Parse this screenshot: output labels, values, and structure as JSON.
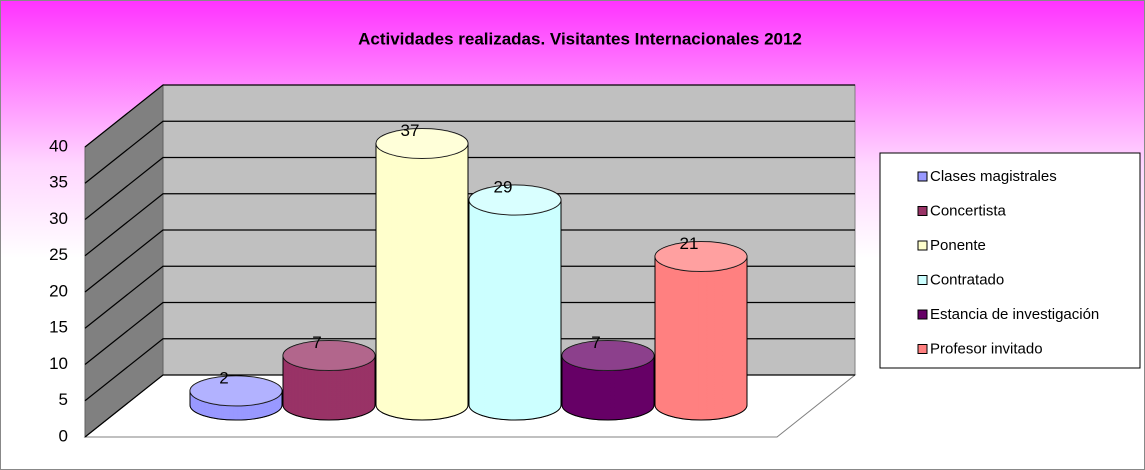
{
  "chart_data": {
    "type": "bar",
    "title": "Actividades realizadas. Visitantes Internacionales 2012",
    "series": [
      {
        "name": "Clases magistrales",
        "color": "#9999ff",
        "values": [
          2
        ]
      },
      {
        "name": "Concertista",
        "color": "#993366",
        "values": [
          7
        ]
      },
      {
        "name": "Ponente",
        "color": "#ffffcc",
        "values": [
          37
        ]
      },
      {
        "name": "Contratado",
        "color": "#ccffff",
        "values": [
          29
        ]
      },
      {
        "name": "Estancia de investigación",
        "color": "#660066",
        "values": [
          7
        ]
      },
      {
        "name": "Profesor invitado",
        "color": "#ff8080",
        "values": [
          21
        ]
      }
    ],
    "ylim": [
      0,
      40
    ],
    "yticks": [
      0,
      5,
      10,
      15,
      20,
      25,
      30,
      35,
      40
    ],
    "grid": true,
    "legend": "right"
  }
}
